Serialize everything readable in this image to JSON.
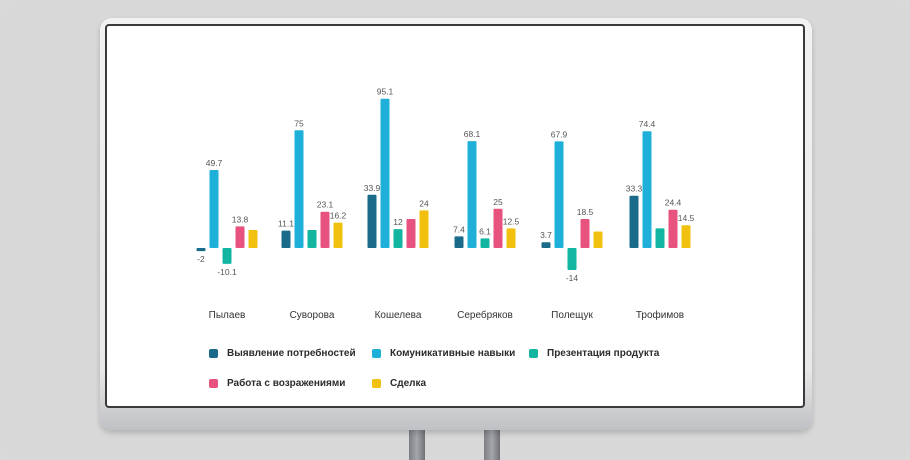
{
  "chart_data": {
    "type": "bar",
    "title": "",
    "xlabel": "",
    "ylabel": "",
    "ylim": [
      -14,
      95.1
    ],
    "grid": false,
    "legend_position": "bottom-left",
    "categories": [
      "Пылаев",
      "Суворова",
      "Кошелева",
      "Серебряков",
      "Полещук",
      "Трофимов"
    ],
    "series": [
      {
        "name": "Выявление потребностей",
        "color": "#1a6b8a",
        "values": [
          -2,
          11.1,
          33.9,
          7.4,
          3.7,
          33.3
        ],
        "labels": [
          "-2",
          "11.1",
          "33.9",
          "7.4",
          "3.7",
          "33.3"
        ]
      },
      {
        "name": "Комуникативные навыки",
        "color": "#1eb0d8",
        "values": [
          49.7,
          75,
          95.1,
          68.1,
          67.9,
          74.4
        ],
        "labels": [
          "49.7",
          "75",
          "95.1",
          "68.1",
          "67.9",
          "74.4"
        ]
      },
      {
        "name": "Презентация продукта",
        "color": "#12b5a0",
        "values": [
          -10.1,
          11.5,
          12,
          6.1,
          -14,
          12.5
        ],
        "labels": [
          "-10.1",
          "",
          "12",
          "6.1",
          "-14",
          ""
        ]
      },
      {
        "name": "Работа с возражениями",
        "color": "#e8527f",
        "values": [
          13.8,
          23.1,
          18.5,
          25,
          18.5,
          24.4
        ],
        "labels": [
          "13.8",
          "23.1",
          "",
          "25",
          "18.5",
          "24.4"
        ]
      },
      {
        "name": "Сделка",
        "color": "#f2c10f",
        "values": [
          11.5,
          16.2,
          24,
          12.5,
          10.5,
          14.5
        ],
        "labels": [
          "",
          "16.2",
          "24",
          "12.5",
          "",
          "14.5"
        ]
      }
    ]
  }
}
